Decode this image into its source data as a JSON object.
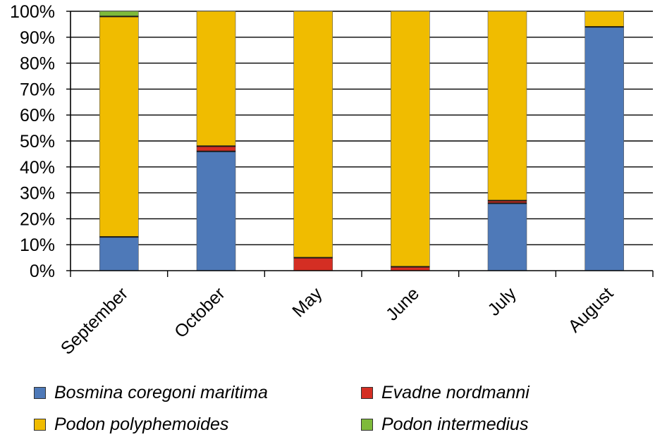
{
  "chart_data": {
    "type": "bar",
    "stacked": true,
    "categories": [
      "September",
      "October",
      "May",
      "June",
      "July",
      "August"
    ],
    "series": [
      {
        "name": "Bosmina coregoni maritima",
        "color": "#4E79B8",
        "values": [
          13,
          46,
          0,
          0,
          26,
          94
        ]
      },
      {
        "name": "Evadne nordmanni",
        "color": "#D42E23",
        "values": [
          0,
          2,
          5,
          1.5,
          1,
          0
        ]
      },
      {
        "name": "Podon polyphemoides",
        "color": "#F0BC00",
        "values": [
          85,
          52,
          95,
          98.5,
          73,
          6
        ]
      },
      {
        "name": "Podon intermedius",
        "color": "#7EBA3A",
        "values": [
          2,
          0,
          0,
          0,
          0,
          0
        ]
      }
    ],
    "ylim": [
      0,
      100
    ],
    "yticks": [
      "0%",
      "10%",
      "20%",
      "30%",
      "40%",
      "50%",
      "60%",
      "70%",
      "80%",
      "90%",
      "100%"
    ],
    "grid": true,
    "legend_placement": "bottom",
    "legend_order": [
      0,
      1,
      2,
      3
    ]
  }
}
